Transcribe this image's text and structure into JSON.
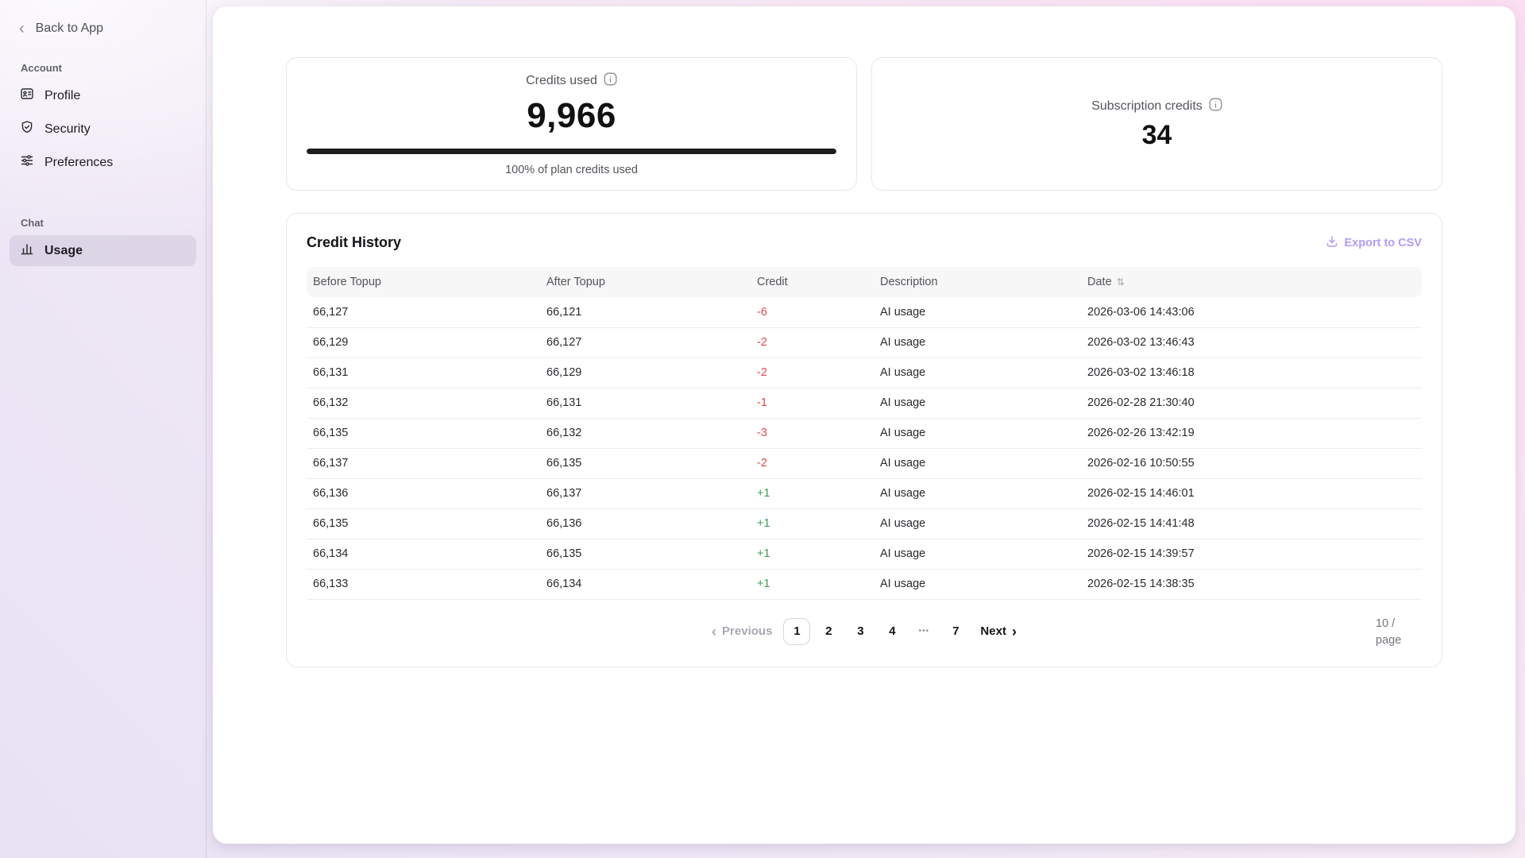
{
  "sidebar": {
    "back_label": "Back to App",
    "sections": [
      {
        "title": "Account",
        "items": [
          {
            "label": "Profile",
            "icon": "id-badge-icon"
          },
          {
            "label": "Security",
            "icon": "shield-check-icon"
          },
          {
            "label": "Preferences",
            "icon": "sliders-icon"
          }
        ]
      },
      {
        "title": "Chat",
        "items": [
          {
            "label": "Usage",
            "icon": "bar-chart-icon",
            "active": true
          }
        ]
      }
    ]
  },
  "cards": {
    "credits_used": {
      "label": "Credits used",
      "value": "9,966",
      "progress_percent": 100,
      "caption": "100% of plan credits used"
    },
    "subscription_credits": {
      "label": "Subscription credits",
      "value": "34"
    }
  },
  "history": {
    "title": "Credit History",
    "export_label": "Export to CSV",
    "columns": {
      "before": "Before Topup",
      "after": "After Topup",
      "credit": "Credit",
      "description": "Description",
      "date": "Date"
    },
    "rows": [
      {
        "before": "66,127",
        "after": "66,121",
        "credit": "-6",
        "credit_type": "negative",
        "description": "AI usage",
        "date": "2026-03-06 14:43:06"
      },
      {
        "before": "66,129",
        "after": "66,127",
        "credit": "-2",
        "credit_type": "negative",
        "description": "AI usage",
        "date": "2026-03-02 13:46:43"
      },
      {
        "before": "66,131",
        "after": "66,129",
        "credit": "-2",
        "credit_type": "negative",
        "description": "AI usage",
        "date": "2026-03-02 13:46:18"
      },
      {
        "before": "66,132",
        "after": "66,131",
        "credit": "-1",
        "credit_type": "negative",
        "description": "AI usage",
        "date": "2026-02-28 21:30:40"
      },
      {
        "before": "66,135",
        "after": "66,132",
        "credit": "-3",
        "credit_type": "negative",
        "description": "AI usage",
        "date": "2026-02-26 13:42:19"
      },
      {
        "before": "66,137",
        "after": "66,135",
        "credit": "-2",
        "credit_type": "negative",
        "description": "AI usage",
        "date": "2026-02-16 10:50:55"
      },
      {
        "before": "66,136",
        "after": "66,137",
        "credit": "+1",
        "credit_type": "positive",
        "description": "AI usage",
        "date": "2026-02-15 14:46:01"
      },
      {
        "before": "66,135",
        "after": "66,136",
        "credit": "+1",
        "credit_type": "positive",
        "description": "AI usage",
        "date": "2026-02-15 14:41:48"
      },
      {
        "before": "66,134",
        "after": "66,135",
        "credit": "+1",
        "credit_type": "positive",
        "description": "AI usage",
        "date": "2026-02-15 14:39:57"
      },
      {
        "before": "66,133",
        "after": "66,134",
        "credit": "+1",
        "credit_type": "positive",
        "description": "AI usage",
        "date": "2026-02-15 14:38:35"
      }
    ],
    "pagination": {
      "previous_label": "Previous",
      "pages": [
        "1",
        "2",
        "3",
        "4",
        "•••",
        "7"
      ],
      "current_page": "1",
      "next_label": "Next",
      "page_size_label": "10 / page"
    }
  },
  "colors": {
    "negative": "#e5484d",
    "positive": "#3d9e52",
    "accent_purple": "#b49cf5"
  }
}
